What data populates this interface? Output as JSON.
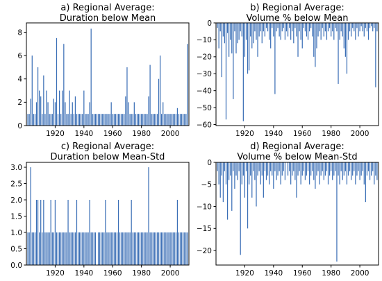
{
  "chart_data": [
    {
      "id": "a",
      "type": "bar",
      "title": [
        "a) Regional Average:",
        "Duration below Mean"
      ],
      "xlim": [
        1900,
        2013
      ],
      "ylim": [
        0,
        8.8
      ],
      "xticks": [
        1920,
        1940,
        1960,
        1980,
        2000
      ],
      "yticks": [
        0,
        2,
        4,
        6,
        8
      ],
      "ytick_labels": [
        "0",
        "2",
        "4",
        "6",
        "8"
      ],
      "bar_color": "#3b6fb6",
      "x": [
        1901,
        1902,
        1903,
        1904,
        1905,
        1906,
        1907,
        1908,
        1909,
        1910,
        1911,
        1912,
        1913,
        1914,
        1915,
        1916,
        1917,
        1918,
        1919,
        1920,
        1921,
        1922,
        1923,
        1924,
        1925,
        1926,
        1927,
        1928,
        1929,
        1930,
        1931,
        1932,
        1933,
        1934,
        1935,
        1936,
        1937,
        1938,
        1939,
        1940,
        1941,
        1942,
        1943,
        1944,
        1945,
        1946,
        1947,
        1948,
        1949,
        1950,
        1951,
        1952,
        1953,
        1954,
        1955,
        1956,
        1957,
        1958,
        1959,
        1960,
        1961,
        1962,
        1963,
        1964,
        1965,
        1966,
        1967,
        1968,
        1969,
        1970,
        1971,
        1972,
        1973,
        1974,
        1975,
        1976,
        1977,
        1978,
        1979,
        1980,
        1981,
        1982,
        1983,
        1984,
        1985,
        1986,
        1987,
        1988,
        1989,
        1990,
        1991,
        1992,
        1993,
        1994,
        1995,
        1996,
        1997,
        1998,
        1999,
        2000,
        2001,
        2002,
        2003,
        2004,
        2005,
        2006,
        2007,
        2008,
        2009,
        2010,
        2011,
        2012
      ],
      "values": [
        1,
        1,
        2.3,
        6,
        1,
        1,
        2,
        5,
        3,
        2.5,
        1,
        4.3,
        1,
        3,
        2,
        1,
        1,
        1,
        2.3,
        2,
        7.5,
        1,
        3,
        1,
        3,
        7,
        2,
        1,
        1,
        3,
        1,
        2,
        1,
        2.5,
        1,
        1,
        1,
        1,
        1,
        3,
        1,
        1,
        1,
        2,
        8.3,
        1,
        1,
        1,
        1,
        1,
        1,
        1,
        1,
        1,
        1,
        1,
        1,
        1,
        2,
        1,
        1,
        1,
        1,
        1,
        1,
        1,
        1,
        1,
        2.5,
        5,
        2,
        1,
        1,
        1,
        2,
        1,
        1,
        1,
        1,
        1,
        1,
        1,
        1,
        1,
        2.5,
        5.2,
        1,
        1,
        1,
        1,
        1,
        4,
        6,
        1,
        2,
        1,
        1,
        1,
        1,
        1,
        1,
        1,
        1,
        1,
        1.5,
        1,
        1,
        1,
        1,
        1,
        1,
        7
      ]
    },
    {
      "id": "b",
      "type": "bar",
      "title": [
        "b) Regional Average:",
        "Volume % below Mean"
      ],
      "xlim": [
        1900,
        2013
      ],
      "ylim": [
        -60.6,
        0
      ],
      "xticks": [
        1920,
        1940,
        1960,
        1980,
        2000
      ],
      "yticks": [
        0,
        -10,
        -20,
        -30,
        -40,
        -50,
        -60
      ],
      "ytick_labels": [
        "0",
        "−10",
        "−20",
        "−30",
        "−40",
        "−50",
        "−60"
      ],
      "bar_color": "#3b6fb6",
      "x": [
        1901,
        1902,
        1903,
        1904,
        1905,
        1906,
        1907,
        1908,
        1909,
        1910,
        1911,
        1912,
        1913,
        1914,
        1915,
        1916,
        1917,
        1918,
        1919,
        1920,
        1921,
        1922,
        1923,
        1924,
        1925,
        1926,
        1927,
        1928,
        1929,
        1930,
        1931,
        1932,
        1933,
        1934,
        1935,
        1936,
        1937,
        1938,
        1939,
        1940,
        1941,
        1942,
        1943,
        1944,
        1945,
        1946,
        1947,
        1948,
        1949,
        1950,
        1951,
        1952,
        1953,
        1954,
        1955,
        1956,
        1957,
        1958,
        1959,
        1960,
        1961,
        1962,
        1963,
        1964,
        1965,
        1966,
        1967,
        1968,
        1969,
        1970,
        1971,
        1972,
        1973,
        1974,
        1975,
        1976,
        1977,
        1978,
        1979,
        1980,
        1981,
        1982,
        1983,
        1984,
        1985,
        1986,
        1987,
        1988,
        1989,
        1990,
        1991,
        1992,
        1993,
        1994,
        1995,
        1996,
        1997,
        1998,
        1999,
        2000,
        2001,
        2002,
        2003,
        2004,
        2005,
        2006,
        2007,
        2008,
        2009,
        2010,
        2011,
        2012
      ],
      "values": [
        -3,
        -15,
        -5,
        -32,
        -8,
        -12,
        -57,
        -6,
        -20,
        -10,
        -18,
        -45,
        -5,
        -18,
        -12,
        -10,
        -5,
        -8,
        -58,
        -20,
        -10,
        -30,
        -28,
        -8,
        -15,
        -12,
        -5,
        -10,
        -20,
        -8,
        -5,
        -12,
        -5,
        -8,
        -3,
        -5,
        -10,
        -15,
        -3,
        -8,
        -42,
        -5,
        -3,
        -8,
        -10,
        -5,
        -3,
        -10,
        -5,
        -8,
        -3,
        -10,
        -5,
        -12,
        -3,
        -8,
        -20,
        -5,
        -10,
        -15,
        -3,
        -5,
        -8,
        -10,
        -5,
        -3,
        -8,
        -20,
        -26,
        -15,
        -8,
        -5,
        -10,
        -3,
        -8,
        -5,
        -10,
        -5,
        -3,
        -8,
        -5,
        -10,
        -3,
        -5,
        -36,
        -10,
        -5,
        -8,
        -15,
        -20,
        -30,
        -10,
        -5,
        -8,
        -3,
        -5,
        -10,
        -3,
        -8,
        -5,
        -2,
        -5,
        -8,
        -3,
        -5,
        -10,
        -3,
        -2,
        -5,
        -3,
        -38,
        -5
      ]
    },
    {
      "id": "c",
      "type": "bar",
      "title": [
        "c) Regional Average:",
        "Duration below Mean-Std"
      ],
      "xlim": [
        1900,
        2013
      ],
      "ylim": [
        0,
        3.15
      ],
      "xticks": [
        1920,
        1940,
        1960,
        1980,
        2000
      ],
      "yticks": [
        0,
        0.5,
        1,
        1.5,
        2,
        2.5,
        3
      ],
      "ytick_labels": [
        "0.0",
        "0.5",
        "1.0",
        "1.5",
        "2.0",
        "2.5",
        "3.0"
      ],
      "bar_color": "#3b6fb6",
      "x": [
        1901,
        1902,
        1903,
        1904,
        1905,
        1906,
        1907,
        1908,
        1909,
        1910,
        1911,
        1912,
        1913,
        1914,
        1915,
        1916,
        1917,
        1918,
        1919,
        1920,
        1921,
        1922,
        1923,
        1924,
        1925,
        1926,
        1927,
        1928,
        1929,
        1930,
        1931,
        1932,
        1933,
        1934,
        1935,
        1936,
        1937,
        1938,
        1939,
        1940,
        1941,
        1942,
        1943,
        1944,
        1945,
        1946,
        1947,
        1948,
        1949,
        1950,
        1951,
        1952,
        1953,
        1954,
        1955,
        1956,
        1957,
        1958,
        1959,
        1960,
        1961,
        1962,
        1963,
        1964,
        1965,
        1966,
        1967,
        1968,
        1969,
        1970,
        1971,
        1972,
        1973,
        1974,
        1975,
        1976,
        1977,
        1978,
        1979,
        1980,
        1981,
        1982,
        1983,
        1984,
        1985,
        1986,
        1987,
        1988,
        1989,
        1990,
        1991,
        1992,
        1993,
        1994,
        1995,
        1996,
        1997,
        1998,
        1999,
        2000,
        2001,
        2002,
        2003,
        2004,
        2005,
        2006,
        2007,
        2008,
        2009,
        2010,
        2011,
        2012
      ],
      "values": [
        1,
        1,
        3,
        1,
        1,
        1,
        2,
        2,
        1,
        2,
        1,
        2,
        1,
        1,
        1,
        1,
        2,
        1,
        1,
        2,
        1,
        1,
        1,
        1,
        1,
        1,
        1,
        1,
        2,
        1,
        1,
        1,
        1,
        1,
        2,
        1,
        1,
        1,
        1,
        1,
        1,
        1,
        1,
        2,
        1,
        1,
        1,
        1,
        0,
        1,
        1,
        1,
        1,
        1,
        2,
        1,
        1,
        1,
        1,
        1,
        1,
        1,
        1,
        2,
        1,
        1,
        1,
        1,
        1,
        1,
        1,
        1,
        2,
        1,
        1,
        1,
        1,
        1,
        1,
        1,
        1,
        1,
        1,
        1,
        3,
        1,
        1,
        1,
        1,
        1,
        1,
        1,
        1,
        1,
        1,
        1,
        1,
        1,
        1,
        1,
        1,
        1,
        1,
        1,
        2,
        1,
        1,
        1,
        1,
        1,
        1,
        1
      ]
    },
    {
      "id": "d",
      "type": "bar",
      "title": [
        "d) Regional Average:",
        "Volume % below Mean-Std"
      ],
      "xlim": [
        1900,
        2013
      ],
      "ylim": [
        -23.3,
        0
      ],
      "xticks": [
        1920,
        1940,
        1960,
        1980,
        2000
      ],
      "yticks": [
        0,
        -5,
        -10,
        -15,
        -20
      ],
      "ytick_labels": [
        "0",
        "−5",
        "−10",
        "−15",
        "−20"
      ],
      "bar_color": "#3b6fb6",
      "x": [
        1901,
        1902,
        1903,
        1904,
        1905,
        1906,
        1907,
        1908,
        1909,
        1910,
        1911,
        1912,
        1913,
        1914,
        1915,
        1916,
        1917,
        1918,
        1919,
        1920,
        1921,
        1922,
        1923,
        1924,
        1925,
        1926,
        1927,
        1928,
        1929,
        1930,
        1931,
        1932,
        1933,
        1934,
        1935,
        1936,
        1937,
        1938,
        1939,
        1940,
        1941,
        1942,
        1943,
        1944,
        1945,
        1946,
        1947,
        1948,
        1949,
        1950,
        1951,
        1952,
        1953,
        1954,
        1955,
        1956,
        1957,
        1958,
        1959,
        1960,
        1961,
        1962,
        1963,
        1964,
        1965,
        1966,
        1967,
        1968,
        1969,
        1970,
        1971,
        1972,
        1973,
        1974,
        1975,
        1976,
        1977,
        1978,
        1979,
        1980,
        1981,
        1982,
        1983,
        1984,
        1985,
        1986,
        1987,
        1988,
        1989,
        1990,
        1991,
        1992,
        1993,
        1994,
        1995,
        1996,
        1997,
        1998,
        1999,
        2000,
        2001,
        2002,
        2003,
        2004,
        2005,
        2006,
        2007,
        2008,
        2009,
        2010,
        2011,
        2012
      ],
      "values": [
        -2,
        -5,
        -8,
        -3,
        -9,
        -2,
        -5,
        -13,
        -4,
        -3,
        -11,
        -2,
        -6,
        -3,
        -4,
        -2,
        -21,
        -5,
        -3,
        -8,
        -2,
        -15,
        -5,
        -3,
        -8,
        -2,
        -4,
        -10,
        -3,
        -2,
        -5,
        -3,
        -8,
        -2,
        -4,
        -3,
        -5,
        -2,
        -3,
        -6,
        -2,
        -4,
        -3,
        -2,
        -5,
        -3,
        -2,
        -4,
        0,
        -3,
        -2,
        -5,
        -3,
        -2,
        -4,
        -8,
        -3,
        -2,
        -5,
        -3,
        -2,
        -4,
        -3,
        -2,
        -5,
        -3,
        -2,
        -4,
        -6,
        -3,
        -2,
        -5,
        -3,
        -2,
        -4,
        -3,
        -2,
        -5,
        -3,
        -2,
        -4,
        -3,
        -2,
        -22.5,
        -3,
        -5,
        -2,
        -4,
        -3,
        -2,
        -5,
        -3,
        -2,
        -4,
        -3,
        -2,
        -5,
        -3,
        -2,
        -4,
        -3,
        -2,
        -5,
        -9,
        -3,
        -2,
        -4,
        -3,
        -2,
        -5,
        -3,
        -4
      ]
    }
  ]
}
